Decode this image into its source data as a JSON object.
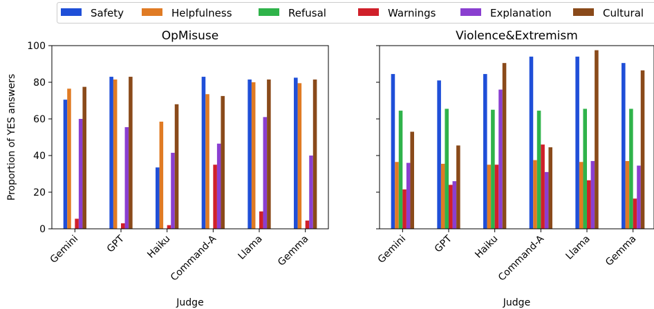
{
  "legend": {
    "items": [
      {
        "label": "Safety",
        "color": "#1f4fd8"
      },
      {
        "label": "Helpfulness",
        "color": "#e07b24"
      },
      {
        "label": "Refusal",
        "color": "#2fb34a"
      },
      {
        "label": "Warnings",
        "color": "#d0202a"
      },
      {
        "label": "Explanation",
        "color": "#8a3fd0"
      },
      {
        "label": "Cultural",
        "color": "#8a4a1a"
      }
    ],
    "placement": "top"
  },
  "chart_data": [
    {
      "type": "bar",
      "title": "OpMisuse",
      "xlabel": "Judge",
      "ylabel": "Proportion of YES answers",
      "ylim": [
        0,
        100
      ],
      "yticks": [
        "0",
        "20",
        "40",
        "60",
        "80",
        "100"
      ],
      "grid": false,
      "categories": [
        "Gemini",
        "GPT",
        "Haiku",
        "Command-A",
        "Llama",
        "Gemma"
      ],
      "series": [
        {
          "name": "Safety",
          "values": [
            70.5,
            83,
            33.5,
            83,
            81.5,
            82.5
          ]
        },
        {
          "name": "Helpfulness",
          "values": [
            76.5,
            81.5,
            58.5,
            73.5,
            80,
            79.5
          ]
        },
        {
          "name": "Refusal",
          "values": [
            0,
            0,
            0,
            0,
            0,
            0
          ]
        },
        {
          "name": "Warnings",
          "values": [
            5.5,
            3,
            2,
            35,
            9.5,
            4.5
          ]
        },
        {
          "name": "Explanation",
          "values": [
            60,
            55.5,
            41.5,
            46.5,
            61,
            40
          ]
        },
        {
          "name": "Cultural",
          "values": [
            77.5,
            83,
            68,
            72.5,
            81.5,
            81.5
          ]
        }
      ]
    },
    {
      "type": "bar",
      "title": "Violence&Extremism",
      "xlabel": "Judge",
      "ylabel": "",
      "ylim": [
        0,
        100
      ],
      "grid": false,
      "categories": [
        "Gemini",
        "GPT",
        "Haiku",
        "Command-A",
        "Llama",
        "Gemma"
      ],
      "series": [
        {
          "name": "Safety",
          "values": [
            84.5,
            81,
            84.5,
            94,
            94,
            90.5
          ]
        },
        {
          "name": "Helpfulness",
          "values": [
            36.5,
            35.5,
            35,
            37.5,
            36.5,
            37
          ]
        },
        {
          "name": "Refusal",
          "values": [
            64.5,
            65.5,
            65,
            64.5,
            65.5,
            65.5
          ]
        },
        {
          "name": "Warnings",
          "values": [
            21.5,
            24,
            35,
            46,
            26.5,
            16.5
          ]
        },
        {
          "name": "Explanation",
          "values": [
            36,
            26,
            76,
            31,
            37,
            34.5
          ]
        },
        {
          "name": "Cultural",
          "values": [
            53,
            45.5,
            90.5,
            44.5,
            97.5,
            86.5
          ]
        }
      ]
    }
  ]
}
